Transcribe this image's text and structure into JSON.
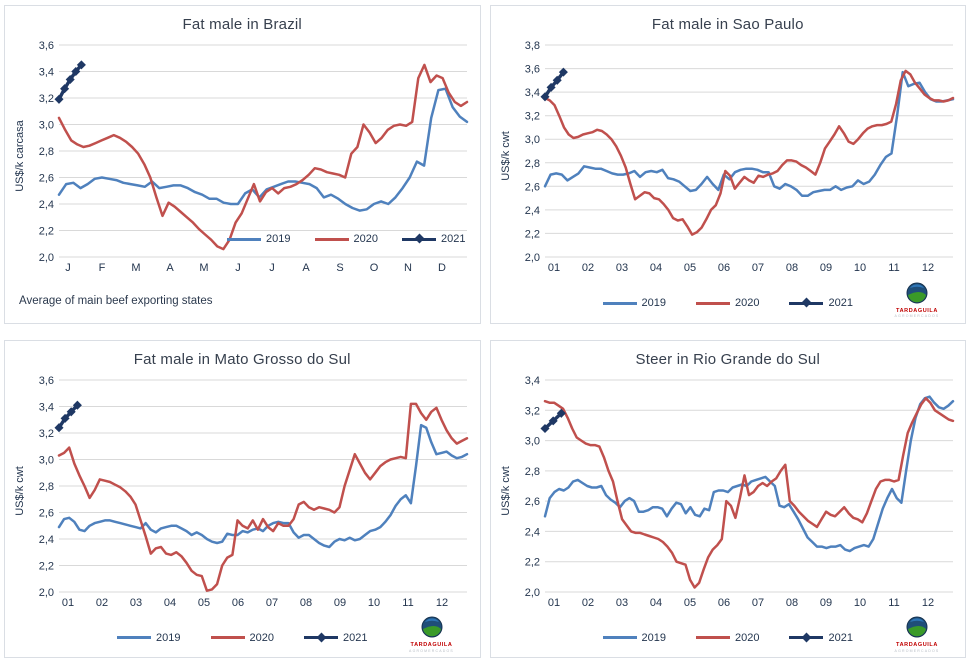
{
  "brand": {
    "logo_text": "TARDAGUILA",
    "logo_sub": "AGROMERCADOS"
  },
  "colors": {
    "s2019": "#4F81BD",
    "s2020": "#C0504D",
    "s2021": "#1F3864",
    "grid": "#D9D9D9",
    "text": "#24364F",
    "title": "#37404E"
  },
  "chart_data": [
    {
      "type": "line",
      "title": "Fat male in Brazil",
      "ylabel": "US$/k carcasa",
      "footnote": "Average of main beef exporting states",
      "ylim": [
        2.0,
        3.6
      ],
      "ystep": 0.2,
      "grid": "horizontal",
      "legend_position": "inside-bottom-right",
      "categories": [
        "J",
        "F",
        "M",
        "A",
        "M",
        "J",
        "J",
        "A",
        "S",
        "O",
        "N",
        "D"
      ],
      "series": [
        {
          "name": "2019",
          "color": "#4F81BD",
          "values": [
            2.47,
            2.55,
            2.56,
            2.52,
            2.55,
            2.59,
            2.6,
            2.59,
            2.58,
            2.56,
            2.55,
            2.54,
            2.53,
            2.57,
            2.52,
            2.53,
            2.54,
            2.54,
            2.52,
            2.49,
            2.47,
            2.44,
            2.44,
            2.41,
            2.4,
            2.4,
            2.48,
            2.51,
            2.45,
            2.51,
            2.53,
            2.55,
            2.57,
            2.57,
            2.56,
            2.55,
            2.52,
            2.45,
            2.47,
            2.44,
            2.4,
            2.37,
            2.35,
            2.36,
            2.4,
            2.42,
            2.4,
            2.45,
            2.52,
            2.6,
            2.72,
            2.69,
            3.05,
            3.26,
            3.27,
            3.13,
            3.06,
            3.02
          ]
        },
        {
          "name": "2020",
          "color": "#C0504D",
          "values": [
            3.05,
            2.96,
            2.88,
            2.85,
            2.83,
            2.84,
            2.86,
            2.88,
            2.9,
            2.92,
            2.9,
            2.87,
            2.83,
            2.78,
            2.7,
            2.6,
            2.45,
            2.31,
            2.41,
            2.38,
            2.34,
            2.3,
            2.26,
            2.21,
            2.17,
            2.13,
            2.08,
            2.06,
            2.13,
            2.26,
            2.33,
            2.44,
            2.55,
            2.42,
            2.49,
            2.52,
            2.48,
            2.52,
            2.53,
            2.55,
            2.58,
            2.62,
            2.67,
            2.66,
            2.64,
            2.63,
            2.62,
            2.6,
            2.78,
            2.83,
            3.0,
            2.94,
            2.86,
            2.9,
            2.96,
            2.99,
            3.0,
            2.99,
            3.02,
            3.35,
            3.45,
            3.32,
            3.37,
            3.35,
            3.24,
            3.17,
            3.14,
            3.17
          ]
        },
        {
          "name": "2021",
          "color": "#1F3864",
          "marker": "diamond",
          "width": 3.4,
          "xspan": [
            0,
            0.055
          ],
          "values": [
            3.19,
            3.27,
            3.34,
            3.4,
            3.45
          ]
        }
      ]
    },
    {
      "type": "line",
      "title": "Fat male in Sao Paulo",
      "ylabel": "US$/k cwt",
      "ylim": [
        2.0,
        3.8
      ],
      "ystep": 0.2,
      "grid": "horizontal",
      "legend_position": "below",
      "categories": [
        "01",
        "02",
        "03",
        "04",
        "05",
        "06",
        "07",
        "08",
        "09",
        "10",
        "11",
        "12"
      ],
      "series": [
        {
          "name": "2019",
          "color": "#4F81BD",
          "values": [
            2.6,
            2.7,
            2.71,
            2.7,
            2.65,
            2.68,
            2.71,
            2.77,
            2.76,
            2.75,
            2.75,
            2.73,
            2.71,
            2.7,
            2.7,
            2.71,
            2.73,
            2.68,
            2.72,
            2.73,
            2.72,
            2.74,
            2.67,
            2.66,
            2.64,
            2.6,
            2.56,
            2.57,
            2.62,
            2.68,
            2.62,
            2.57,
            2.7,
            2.66,
            2.72,
            2.74,
            2.75,
            2.75,
            2.74,
            2.72,
            2.72,
            2.6,
            2.58,
            2.62,
            2.6,
            2.57,
            2.52,
            2.52,
            2.55,
            2.56,
            2.57,
            2.57,
            2.6,
            2.57,
            2.59,
            2.6,
            2.65,
            2.62,
            2.64,
            2.7,
            2.78,
            2.85,
            2.88,
            3.2,
            3.57,
            3.45,
            3.47,
            3.48,
            3.4,
            3.34,
            3.32,
            3.32,
            3.33,
            3.34
          ]
        },
        {
          "name": "2020",
          "color": "#C0504D",
          "values": [
            3.35,
            3.33,
            3.29,
            3.2,
            3.1,
            3.04,
            3.01,
            3.02,
            3.04,
            3.05,
            3.06,
            3.08,
            3.07,
            3.04,
            3.0,
            2.94,
            2.86,
            2.76,
            2.62,
            2.49,
            2.52,
            2.55,
            2.54,
            2.5,
            2.49,
            2.45,
            2.4,
            2.33,
            2.31,
            2.32,
            2.26,
            2.19,
            2.21,
            2.25,
            2.32,
            2.4,
            2.44,
            2.54,
            2.73,
            2.69,
            2.58,
            2.63,
            2.68,
            2.65,
            2.63,
            2.69,
            2.68,
            2.7,
            2.71,
            2.73,
            2.78,
            2.82,
            2.82,
            2.81,
            2.78,
            2.76,
            2.73,
            2.7,
            2.8,
            2.92,
            2.98,
            3.04,
            3.11,
            3.05,
            2.98,
            2.96,
            3.0,
            3.05,
            3.09,
            3.11,
            3.12,
            3.12,
            3.13,
            3.15,
            3.3,
            3.5,
            3.58,
            3.55,
            3.48,
            3.43,
            3.38,
            3.35,
            3.33,
            3.33,
            3.32,
            3.33,
            3.35
          ]
        },
        {
          "name": "2021",
          "color": "#1F3864",
          "marker": "diamond",
          "width": 3.4,
          "xspan": [
            0,
            0.045
          ],
          "values": [
            3.36,
            3.44,
            3.5,
            3.57
          ]
        }
      ]
    },
    {
      "type": "line",
      "title": "Fat male in Mato Grosso do Sul",
      "ylabel": "US$/k cwt",
      "ylim": [
        2.0,
        3.6
      ],
      "ystep": 0.2,
      "grid": "horizontal",
      "legend_position": "below",
      "categories": [
        "01",
        "02",
        "03",
        "04",
        "05",
        "06",
        "07",
        "08",
        "09",
        "10",
        "11",
        "12"
      ],
      "series": [
        {
          "name": "2019",
          "color": "#4F81BD",
          "values": [
            2.49,
            2.55,
            2.56,
            2.53,
            2.47,
            2.46,
            2.5,
            2.52,
            2.53,
            2.54,
            2.54,
            2.53,
            2.52,
            2.51,
            2.5,
            2.49,
            2.48,
            2.52,
            2.47,
            2.45,
            2.48,
            2.49,
            2.5,
            2.5,
            2.48,
            2.46,
            2.43,
            2.45,
            2.43,
            2.4,
            2.38,
            2.37,
            2.38,
            2.44,
            2.43,
            2.43,
            2.46,
            2.45,
            2.47,
            2.48,
            2.46,
            2.5,
            2.52,
            2.53,
            2.52,
            2.52,
            2.45,
            2.41,
            2.43,
            2.43,
            2.4,
            2.37,
            2.35,
            2.34,
            2.38,
            2.4,
            2.39,
            2.41,
            2.39,
            2.4,
            2.43,
            2.46,
            2.47,
            2.49,
            2.53,
            2.58,
            2.65,
            2.7,
            2.73,
            2.67,
            2.95,
            3.26,
            3.24,
            3.13,
            3.04,
            3.05,
            3.06,
            3.03,
            3.01,
            3.02,
            3.04
          ]
        },
        {
          "name": "2020",
          "color": "#C0504D",
          "values": [
            3.03,
            3.05,
            3.09,
            2.97,
            2.88,
            2.8,
            2.71,
            2.77,
            2.85,
            2.84,
            2.83,
            2.81,
            2.79,
            2.76,
            2.72,
            2.66,
            2.54,
            2.42,
            2.29,
            2.33,
            2.34,
            2.29,
            2.28,
            2.3,
            2.27,
            2.22,
            2.16,
            2.13,
            2.12,
            2.01,
            2.02,
            2.06,
            2.2,
            2.26,
            2.28,
            2.54,
            2.5,
            2.48,
            2.54,
            2.47,
            2.55,
            2.49,
            2.46,
            2.52,
            2.5,
            2.5,
            2.55,
            2.66,
            2.68,
            2.64,
            2.62,
            2.64,
            2.63,
            2.62,
            2.6,
            2.64,
            2.8,
            2.92,
            3.04,
            2.97,
            2.9,
            2.85,
            2.9,
            2.95,
            2.98,
            3.0,
            3.01,
            3.02,
            3.01,
            3.42,
            3.42,
            3.35,
            3.3,
            3.36,
            3.39,
            3.3,
            3.22,
            3.16,
            3.12,
            3.14,
            3.16
          ]
        },
        {
          "name": "2021",
          "color": "#1F3864",
          "marker": "diamond",
          "width": 3.4,
          "xspan": [
            0,
            0.045
          ],
          "values": [
            3.24,
            3.31,
            3.36,
            3.41
          ]
        }
      ]
    },
    {
      "type": "line",
      "title": "Steer in Rio Grande do Sul",
      "ylabel": "US$/k cwt",
      "ylim": [
        2.0,
        3.4
      ],
      "ystep": 0.2,
      "grid": "horizontal",
      "legend_position": "below",
      "categories": [
        "01",
        "02",
        "03",
        "04",
        "05",
        "06",
        "07",
        "08",
        "09",
        "10",
        "11",
        "12"
      ],
      "series": [
        {
          "name": "2019",
          "color": "#4F81BD",
          "values": [
            2.5,
            2.62,
            2.66,
            2.68,
            2.67,
            2.69,
            2.73,
            2.74,
            2.72,
            2.7,
            2.69,
            2.69,
            2.7,
            2.64,
            2.61,
            2.59,
            2.56,
            2.6,
            2.62,
            2.6,
            2.53,
            2.53,
            2.54,
            2.56,
            2.56,
            2.55,
            2.5,
            2.55,
            2.59,
            2.58,
            2.52,
            2.56,
            2.51,
            2.5,
            2.55,
            2.54,
            2.66,
            2.67,
            2.67,
            2.66,
            2.69,
            2.7,
            2.71,
            2.7,
            2.73,
            2.74,
            2.75,
            2.76,
            2.73,
            2.7,
            2.57,
            2.56,
            2.58,
            2.53,
            2.48,
            2.42,
            2.36,
            2.33,
            2.3,
            2.3,
            2.29,
            2.3,
            2.3,
            2.31,
            2.28,
            2.27,
            2.29,
            2.3,
            2.31,
            2.3,
            2.35,
            2.45,
            2.55,
            2.62,
            2.68,
            2.62,
            2.59,
            2.8,
            3.0,
            3.15,
            3.24,
            3.28,
            3.29,
            3.25,
            3.22,
            3.21,
            3.23,
            3.26
          ]
        },
        {
          "name": "2020",
          "color": "#C0504D",
          "values": [
            3.26,
            3.25,
            3.25,
            3.23,
            3.21,
            3.15,
            3.08,
            3.02,
            3.0,
            2.98,
            2.97,
            2.97,
            2.96,
            2.89,
            2.8,
            2.73,
            2.6,
            2.48,
            2.44,
            2.4,
            2.39,
            2.39,
            2.38,
            2.37,
            2.36,
            2.35,
            2.33,
            2.3,
            2.26,
            2.2,
            2.19,
            2.18,
            2.08,
            2.03,
            2.06,
            2.15,
            2.23,
            2.28,
            2.31,
            2.35,
            2.6,
            2.57,
            2.49,
            2.62,
            2.77,
            2.64,
            2.66,
            2.7,
            2.72,
            2.7,
            2.73,
            2.75,
            2.8,
            2.84,
            2.6,
            2.57,
            2.53,
            2.5,
            2.47,
            2.45,
            2.43,
            2.48,
            2.53,
            2.51,
            2.5,
            2.53,
            2.56,
            2.52,
            2.49,
            2.48,
            2.46,
            2.52,
            2.6,
            2.68,
            2.73,
            2.74,
            2.74,
            2.73,
            2.74,
            2.9,
            3.05,
            3.12,
            3.18,
            3.24,
            3.28,
            3.25,
            3.2,
            3.18,
            3.16,
            3.14,
            3.13
          ]
        },
        {
          "name": "2021",
          "color": "#1F3864",
          "marker": "diamond",
          "width": 3.4,
          "xspan": [
            0,
            0.04
          ],
          "values": [
            3.08,
            3.13,
            3.18
          ]
        }
      ]
    }
  ]
}
